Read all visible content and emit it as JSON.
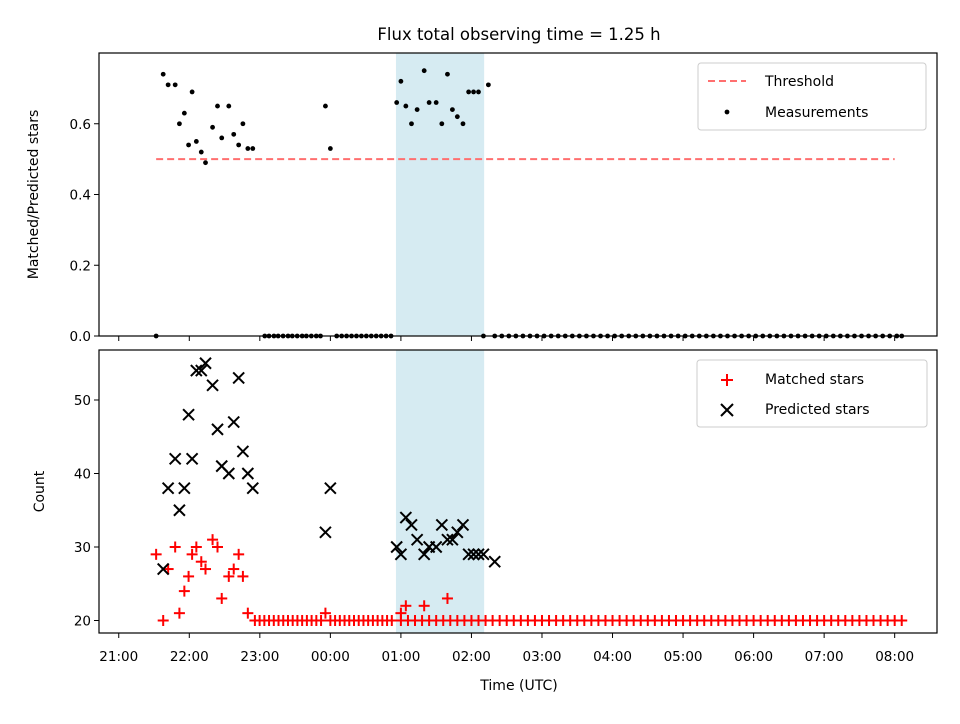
{
  "chart_data": {
    "title": "Flux total observing time = 1.25 h",
    "xlabel": "Time (UTC)",
    "x_unit": "hours since 21:00 UTC",
    "xlim": [
      -0.28,
      11.6
    ],
    "x_ticks": [
      {
        "value": 0,
        "label": "21:00"
      },
      {
        "value": 1,
        "label": "22:00"
      },
      {
        "value": 2,
        "label": "23:00"
      },
      {
        "value": 3,
        "label": "00:00"
      },
      {
        "value": 4,
        "label": "01:00"
      },
      {
        "value": 5,
        "label": "02:00"
      },
      {
        "value": 6,
        "label": "03:00"
      },
      {
        "value": 7,
        "label": "04:00"
      },
      {
        "value": 8,
        "label": "05:00"
      },
      {
        "value": 9,
        "label": "06:00"
      },
      {
        "value": 10,
        "label": "07:00"
      },
      {
        "value": 11,
        "label": "08:00"
      }
    ],
    "shaded_span": {
      "x0": 3.93,
      "x1": 5.18,
      "color": "#add8e6"
    },
    "top_panel": {
      "type": "scatter",
      "ylabel": "Matched/Predicted stars",
      "ylim": [
        0,
        0.8
      ],
      "y_ticks": [
        {
          "value": 0.0,
          "label": "0.0"
        },
        {
          "value": 0.2,
          "label": "0.2"
        },
        {
          "value": 0.4,
          "label": "0.4"
        },
        {
          "value": 0.6,
          "label": "0.6"
        }
      ],
      "threshold": {
        "name": "Threshold",
        "y": 0.5,
        "x0": 0.53,
        "x1": 11.0,
        "color": "#ff6f6f"
      },
      "measurements": {
        "name": "Measurements",
        "color": "#000000",
        "points": [
          [
            0.53,
            0.0
          ],
          [
            0.63,
            0.74
          ],
          [
            0.7,
            0.71
          ],
          [
            0.8,
            0.71
          ],
          [
            0.86,
            0.6
          ],
          [
            0.93,
            0.63
          ],
          [
            0.99,
            0.54
          ],
          [
            1.04,
            0.69
          ],
          [
            1.1,
            0.55
          ],
          [
            1.17,
            0.52
          ],
          [
            1.23,
            0.49
          ],
          [
            1.33,
            0.59
          ],
          [
            1.4,
            0.65
          ],
          [
            1.46,
            0.56
          ],
          [
            1.56,
            0.65
          ],
          [
            1.63,
            0.57
          ],
          [
            1.7,
            0.54
          ],
          [
            1.76,
            0.6
          ],
          [
            1.83,
            0.53
          ],
          [
            1.9,
            0.53
          ],
          [
            2.07,
            0.0
          ],
          [
            2.13,
            0.0
          ],
          [
            2.2,
            0.0
          ],
          [
            2.26,
            0.0
          ],
          [
            2.33,
            0.0
          ],
          [
            2.4,
            0.0
          ],
          [
            2.46,
            0.0
          ],
          [
            2.53,
            0.0
          ],
          [
            2.6,
            0.0
          ],
          [
            2.66,
            0.0
          ],
          [
            2.73,
            0.0
          ],
          [
            2.8,
            0.0
          ],
          [
            2.86,
            0.0
          ],
          [
            2.93,
            0.65
          ],
          [
            3.0,
            0.53
          ],
          [
            3.09,
            0.0
          ],
          [
            3.16,
            0.0
          ],
          [
            3.23,
            0.0
          ],
          [
            3.3,
            0.0
          ],
          [
            3.37,
            0.0
          ],
          [
            3.44,
            0.0
          ],
          [
            3.51,
            0.0
          ],
          [
            3.58,
            0.0
          ],
          [
            3.65,
            0.0
          ],
          [
            3.72,
            0.0
          ],
          [
            3.79,
            0.0
          ],
          [
            3.86,
            0.0
          ],
          [
            3.94,
            0.66
          ],
          [
            4.0,
            0.72
          ],
          [
            4.07,
            0.65
          ],
          [
            4.15,
            0.6
          ],
          [
            4.23,
            0.64
          ],
          [
            4.33,
            0.75
          ],
          [
            4.4,
            0.66
          ],
          [
            4.5,
            0.66
          ],
          [
            4.58,
            0.6
          ],
          [
            4.66,
            0.74
          ],
          [
            4.73,
            0.64
          ],
          [
            4.8,
            0.62
          ],
          [
            4.88,
            0.6
          ],
          [
            4.96,
            0.69
          ],
          [
            5.03,
            0.69
          ],
          [
            5.1,
            0.69
          ],
          [
            5.17,
            0.0
          ],
          [
            5.24,
            0.71
          ],
          [
            5.33,
            0.0
          ],
          [
            5.43,
            0.0
          ],
          [
            5.53,
            0.0
          ],
          [
            5.63,
            0.0
          ],
          [
            5.73,
            0.0
          ],
          [
            5.83,
            0.0
          ],
          [
            5.93,
            0.0
          ],
          [
            6.03,
            0.0
          ],
          [
            6.13,
            0.0
          ],
          [
            6.23,
            0.0
          ],
          [
            6.33,
            0.0
          ],
          [
            6.43,
            0.0
          ],
          [
            6.53,
            0.0
          ],
          [
            6.63,
            0.0
          ],
          [
            6.73,
            0.0
          ],
          [
            6.83,
            0.0
          ],
          [
            6.93,
            0.0
          ],
          [
            7.03,
            0.0
          ],
          [
            7.13,
            0.0
          ],
          [
            7.23,
            0.0
          ],
          [
            7.33,
            0.0
          ],
          [
            7.43,
            0.0
          ],
          [
            7.53,
            0.0
          ],
          [
            7.63,
            0.0
          ],
          [
            7.73,
            0.0
          ],
          [
            7.83,
            0.0
          ],
          [
            7.93,
            0.0
          ],
          [
            8.03,
            0.0
          ],
          [
            8.13,
            0.0
          ],
          [
            8.23,
            0.0
          ],
          [
            8.33,
            0.0
          ],
          [
            8.43,
            0.0
          ],
          [
            8.53,
            0.0
          ],
          [
            8.63,
            0.0
          ],
          [
            8.73,
            0.0
          ],
          [
            8.83,
            0.0
          ],
          [
            8.93,
            0.0
          ],
          [
            9.03,
            0.0
          ],
          [
            9.13,
            0.0
          ],
          [
            9.23,
            0.0
          ],
          [
            9.33,
            0.0
          ],
          [
            9.43,
            0.0
          ],
          [
            9.53,
            0.0
          ],
          [
            9.63,
            0.0
          ],
          [
            9.73,
            0.0
          ],
          [
            9.83,
            0.0
          ],
          [
            9.93,
            0.0
          ],
          [
            10.03,
            0.0
          ],
          [
            10.13,
            0.0
          ],
          [
            10.23,
            0.0
          ],
          [
            10.33,
            0.0
          ],
          [
            10.43,
            0.0
          ],
          [
            10.53,
            0.0
          ],
          [
            10.63,
            0.0
          ],
          [
            10.73,
            0.0
          ],
          [
            10.83,
            0.0
          ],
          [
            10.93,
            0.0
          ],
          [
            11.03,
            0.0
          ],
          [
            11.1,
            0.0
          ]
        ]
      },
      "legend": {
        "position": "top-right",
        "entries": [
          "Threshold",
          "Measurements"
        ]
      }
    },
    "bottom_panel": {
      "type": "scatter",
      "ylabel": "Count",
      "ylim": [
        18.3,
        56.8
      ],
      "y_ticks": [
        {
          "value": 20,
          "label": "20"
        },
        {
          "value": 30,
          "label": "30"
        },
        {
          "value": 40,
          "label": "40"
        },
        {
          "value": 50,
          "label": "50"
        }
      ],
      "matched": {
        "name": "Matched stars",
        "color": "#ff0000",
        "marker": "+",
        "extra_points": [
          [
            0.53,
            29
          ],
          [
            0.63,
            20
          ],
          [
            0.7,
            27
          ],
          [
            0.8,
            30
          ],
          [
            0.86,
            21
          ],
          [
            0.93,
            24
          ],
          [
            0.99,
            26
          ],
          [
            1.04,
            29
          ],
          [
            1.1,
            30
          ],
          [
            1.17,
            28
          ],
          [
            1.23,
            27
          ],
          [
            1.33,
            31
          ],
          [
            1.4,
            30
          ],
          [
            1.46,
            23
          ],
          [
            1.56,
            26
          ],
          [
            1.63,
            27
          ],
          [
            1.7,
            29
          ],
          [
            1.76,
            26
          ],
          [
            1.83,
            21
          ],
          [
            2.93,
            21
          ],
          [
            4.0,
            21
          ],
          [
            4.07,
            22
          ],
          [
            4.33,
            22
          ],
          [
            4.66,
            23
          ]
        ],
        "baseline_value": 20,
        "baseline_ranges": [
          [
            1.93,
            2.9,
            0.067
          ],
          [
            3.0,
            3.9,
            0.067
          ],
          [
            4.0,
            11.1,
            0.1
          ]
        ]
      },
      "predicted": {
        "name": "Predicted stars",
        "color": "#000000",
        "marker": "x",
        "points": [
          [
            0.63,
            27
          ],
          [
            0.7,
            38
          ],
          [
            0.8,
            42
          ],
          [
            0.86,
            35
          ],
          [
            0.93,
            38
          ],
          [
            0.99,
            48
          ],
          [
            1.04,
            42
          ],
          [
            1.1,
            54
          ],
          [
            1.17,
            54
          ],
          [
            1.23,
            55
          ],
          [
            1.33,
            52
          ],
          [
            1.4,
            46
          ],
          [
            1.46,
            41
          ],
          [
            1.56,
            40
          ],
          [
            1.63,
            47
          ],
          [
            1.7,
            53
          ],
          [
            1.76,
            43
          ],
          [
            1.83,
            40
          ],
          [
            1.9,
            38
          ],
          [
            2.93,
            32
          ],
          [
            3.0,
            38
          ],
          [
            3.94,
            30
          ],
          [
            4.0,
            29
          ],
          [
            4.07,
            34
          ],
          [
            4.15,
            33
          ],
          [
            4.23,
            31
          ],
          [
            4.33,
            29
          ],
          [
            4.4,
            30
          ],
          [
            4.5,
            30
          ],
          [
            4.58,
            33
          ],
          [
            4.66,
            31
          ],
          [
            4.73,
            31
          ],
          [
            4.8,
            32
          ],
          [
            4.88,
            33
          ],
          [
            4.96,
            29
          ],
          [
            5.03,
            29
          ],
          [
            5.1,
            29
          ],
          [
            5.17,
            29
          ],
          [
            5.33,
            28
          ]
        ]
      },
      "legend": {
        "position": "top-right",
        "entries": [
          "Matched stars",
          "Predicted stars"
        ]
      }
    }
  }
}
